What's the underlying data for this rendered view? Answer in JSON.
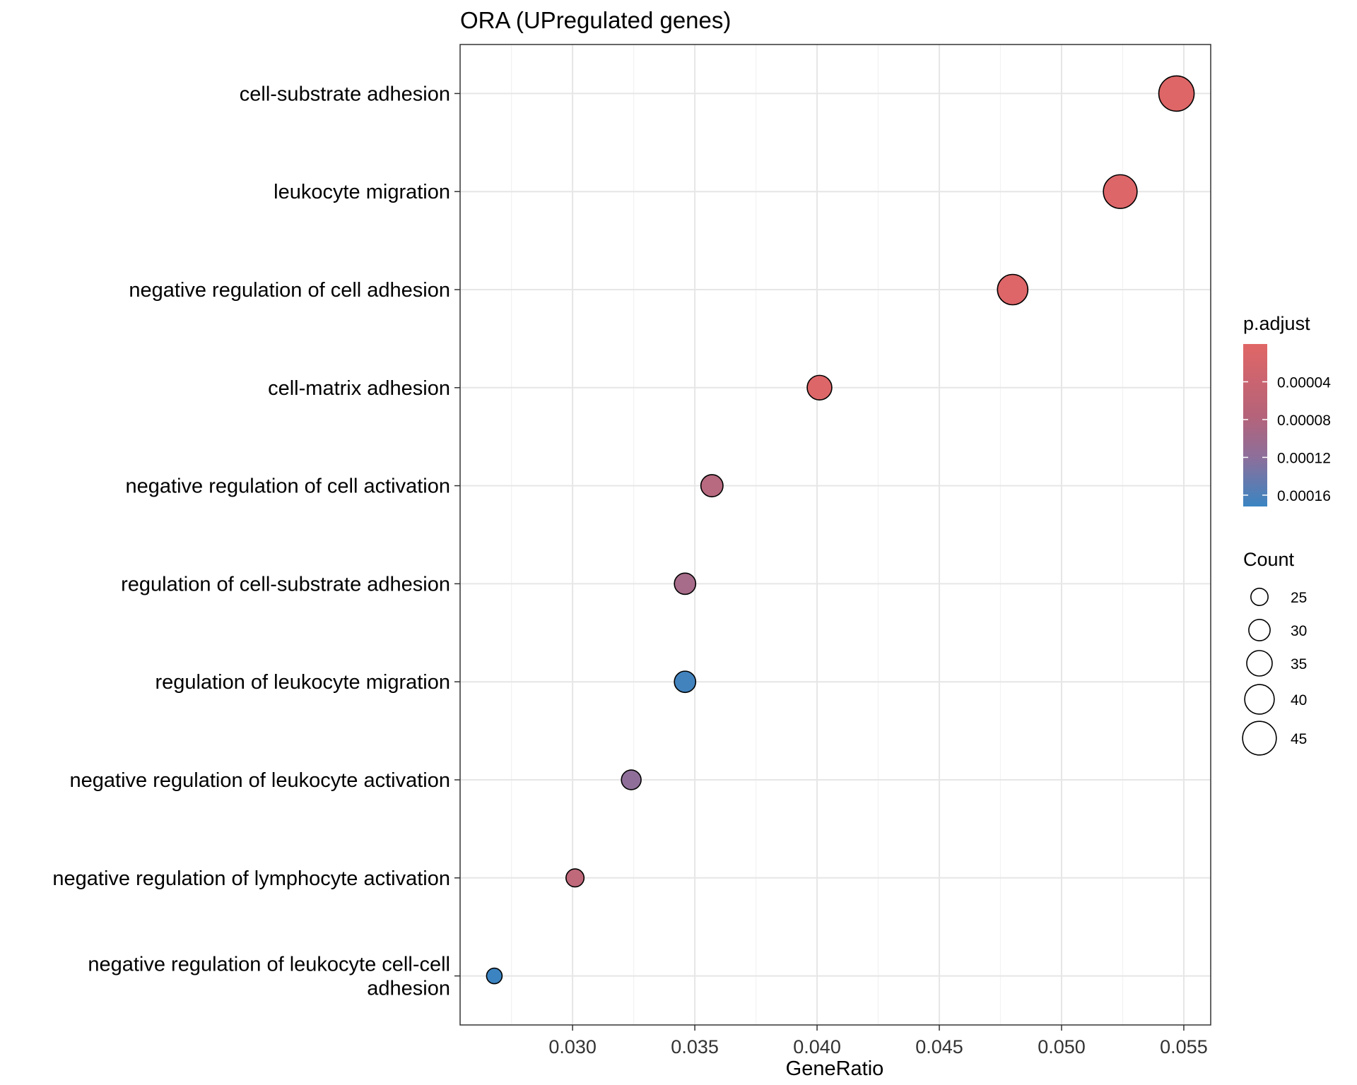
{
  "chart_data": {
    "type": "scatter",
    "title": "ORA (UPregulated genes)",
    "xlabel": "GeneRatio",
    "ylabel": "",
    "xlim": [
      0.0254,
      0.0561
    ],
    "xticks": [
      0.03,
      0.035,
      0.04,
      0.045,
      0.05,
      0.055
    ],
    "xtick_labels": [
      "0.030",
      "0.035",
      "0.040",
      "0.045",
      "0.050",
      "0.055"
    ],
    "grid": true,
    "categories": [
      {
        "label": "cell-substrate adhesion",
        "lines": [
          "cell-substrate adhesion"
        ]
      },
      {
        "label": "leukocyte migration",
        "lines": [
          "leukocyte migration"
        ]
      },
      {
        "label": "negative regulation of cell adhesion",
        "lines": [
          "negative regulation of cell adhesion"
        ]
      },
      {
        "label": "cell-matrix adhesion",
        "lines": [
          "cell-matrix adhesion"
        ]
      },
      {
        "label": "negative regulation of cell activation",
        "lines": [
          "negative regulation of cell activation"
        ]
      },
      {
        "label": "regulation of cell-substrate adhesion",
        "lines": [
          "regulation of cell-substrate adhesion"
        ]
      },
      {
        "label": "regulation of leukocyte migration",
        "lines": [
          "regulation of leukocyte migration"
        ]
      },
      {
        "label": "negative regulation of leukocyte activation",
        "lines": [
          "negative regulation of leukocyte activation"
        ]
      },
      {
        "label": "negative regulation of lymphocyte activation",
        "lines": [
          "negative regulation of lymphocyte activation"
        ]
      },
      {
        "label": "negative regulation of leukocyte cell-cell adhesion",
        "lines": [
          "negative regulation of leukocyte cell-cell",
          "adhesion"
        ]
      }
    ],
    "points": [
      {
        "term": "cell-substrate adhesion",
        "gene_ratio": 0.0547,
        "count": 47,
        "p_adjust": 2e-06
      },
      {
        "term": "leukocyte migration",
        "gene_ratio": 0.0524,
        "count": 45,
        "p_adjust": 4e-06
      },
      {
        "term": "negative regulation of cell adhesion",
        "gene_ratio": 0.048,
        "count": 41,
        "p_adjust": 3e-06
      },
      {
        "term": "cell-matrix adhesion",
        "gene_ratio": 0.0401,
        "count": 34,
        "p_adjust": 4e-06
      },
      {
        "term": "negative regulation of cell activation",
        "gene_ratio": 0.0357,
        "count": 31,
        "p_adjust": 5e-05
      },
      {
        "term": "regulation of cell-substrate adhesion",
        "gene_ratio": 0.0346,
        "count": 30,
        "p_adjust": 7e-05
      },
      {
        "term": "regulation of leukocyte migration",
        "gene_ratio": 0.0346,
        "count": 30,
        "p_adjust": 0.000165
      },
      {
        "term": "negative regulation of leukocyte activation",
        "gene_ratio": 0.0324,
        "count": 28,
        "p_adjust": 0.0001
      },
      {
        "term": "negative regulation of lymphocyte activation",
        "gene_ratio": 0.0301,
        "count": 26,
        "p_adjust": 4e-05
      },
      {
        "term": "negative regulation of leukocyte cell-cell adhesion",
        "gene_ratio": 0.0268,
        "count": 23,
        "p_adjust": 0.00017
      }
    ],
    "color_legend": {
      "title": "p.adjust",
      "range": [
        0.0,
        0.000172
      ],
      "low_color": "#e06666",
      "high_color": "#3a85c2",
      "mid_color": "#8c6f9b",
      "ticks": [
        4e-05,
        8e-05,
        0.00012,
        0.00016
      ],
      "tick_labels": [
        "0.00004",
        "0.00008",
        "0.00012",
        "0.00016"
      ]
    },
    "size_legend": {
      "title": "Count",
      "values": [
        25,
        30,
        35,
        40,
        45
      ],
      "labels": [
        "25",
        "30",
        "35",
        "40",
        "45"
      ],
      "count_range": [
        23,
        47
      ]
    },
    "legend_position": "right"
  }
}
